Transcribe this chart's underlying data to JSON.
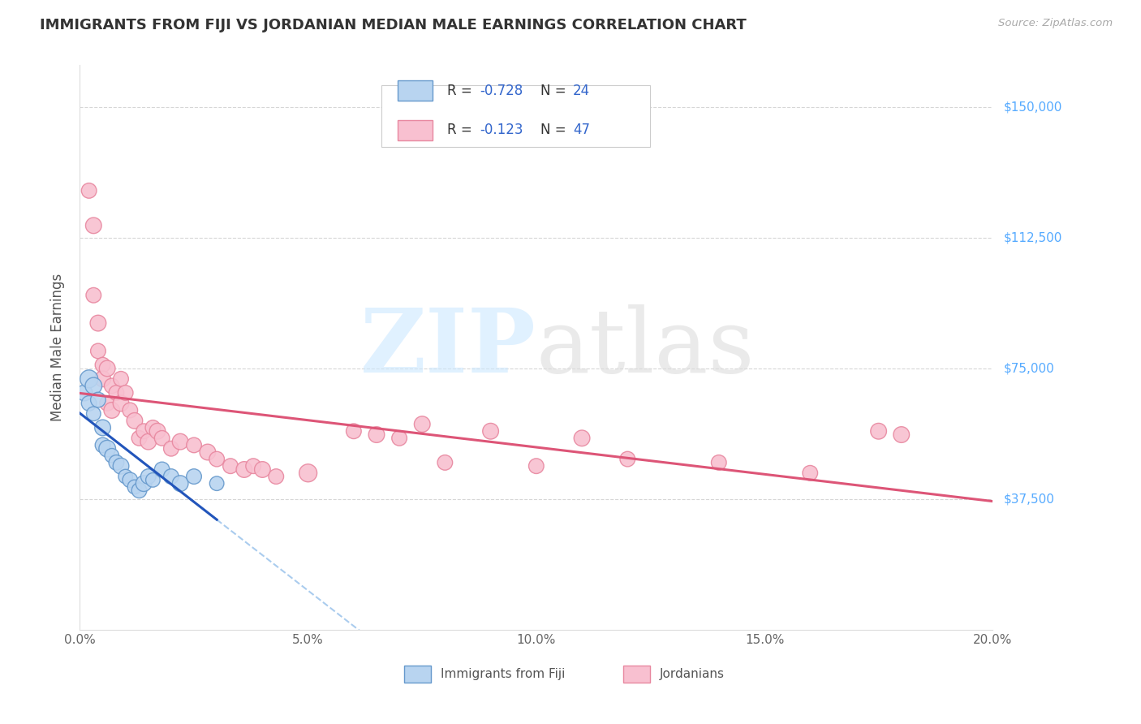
{
  "title": "IMMIGRANTS FROM FIJI VS JORDANIAN MEDIAN MALE EARNINGS CORRELATION CHART",
  "source": "Source: ZipAtlas.com",
  "ylabel": "Median Male Earnings",
  "ytick_labels": [
    "$37,500",
    "$75,000",
    "$112,500",
    "$150,000"
  ],
  "ytick_values": [
    37500,
    75000,
    112500,
    150000
  ],
  "xmin": 0.0,
  "xmax": 0.2,
  "ymin": 0,
  "ymax": 162000,
  "fiji_color": "#b8d4f0",
  "fiji_edge": "#6699cc",
  "jordan_color": "#f8c0d0",
  "jordan_edge": "#e888a0",
  "fiji_line_color": "#2255bb",
  "jordan_line_color": "#dd5577",
  "dashed_color": "#aaccee",
  "ytick_color": "#55aaff",
  "fiji_points_x": [
    0.001,
    0.002,
    0.002,
    0.003,
    0.003,
    0.004,
    0.005,
    0.005,
    0.006,
    0.007,
    0.008,
    0.009,
    0.01,
    0.011,
    0.012,
    0.013,
    0.014,
    0.015,
    0.016,
    0.018,
    0.02,
    0.022,
    0.025,
    0.03
  ],
  "fiji_points_y": [
    68000,
    72000,
    65000,
    70000,
    62000,
    66000,
    58000,
    53000,
    52000,
    50000,
    48000,
    47000,
    44000,
    43000,
    41000,
    40000,
    42000,
    44000,
    43000,
    46000,
    44000,
    42000,
    44000,
    42000
  ],
  "fiji_sizes": [
    200,
    250,
    180,
    220,
    160,
    180,
    200,
    180,
    220,
    160,
    180,
    200,
    160,
    180,
    160,
    180,
    200,
    180,
    160,
    180,
    180,
    200,
    180,
    160
  ],
  "jordan_points_x": [
    0.002,
    0.003,
    0.003,
    0.004,
    0.004,
    0.005,
    0.005,
    0.006,
    0.006,
    0.007,
    0.007,
    0.008,
    0.009,
    0.009,
    0.01,
    0.011,
    0.012,
    0.013,
    0.014,
    0.015,
    0.016,
    0.017,
    0.018,
    0.02,
    0.022,
    0.025,
    0.028,
    0.03,
    0.033,
    0.036,
    0.038,
    0.04,
    0.043,
    0.05,
    0.06,
    0.065,
    0.07,
    0.075,
    0.08,
    0.09,
    0.1,
    0.11,
    0.12,
    0.14,
    0.16,
    0.175,
    0.18
  ],
  "jordan_points_y": [
    126000,
    116000,
    96000,
    88000,
    80000,
    76000,
    72000,
    75000,
    65000,
    70000,
    63000,
    68000,
    72000,
    65000,
    68000,
    63000,
    60000,
    55000,
    57000,
    54000,
    58000,
    57000,
    55000,
    52000,
    54000,
    53000,
    51000,
    49000,
    47000,
    46000,
    47000,
    46000,
    44000,
    45000,
    57000,
    56000,
    55000,
    59000,
    48000,
    57000,
    47000,
    55000,
    49000,
    48000,
    45000,
    57000,
    56000
  ],
  "jordan_sizes": [
    180,
    200,
    180,
    200,
    180,
    180,
    200,
    200,
    180,
    180,
    200,
    180,
    180,
    200,
    180,
    180,
    200,
    180,
    180,
    200,
    180,
    200,
    180,
    180,
    200,
    180,
    200,
    180,
    180,
    200,
    180,
    200,
    180,
    250,
    180,
    200,
    180,
    200,
    180,
    200,
    180,
    200,
    180,
    180,
    180,
    200,
    200
  ]
}
